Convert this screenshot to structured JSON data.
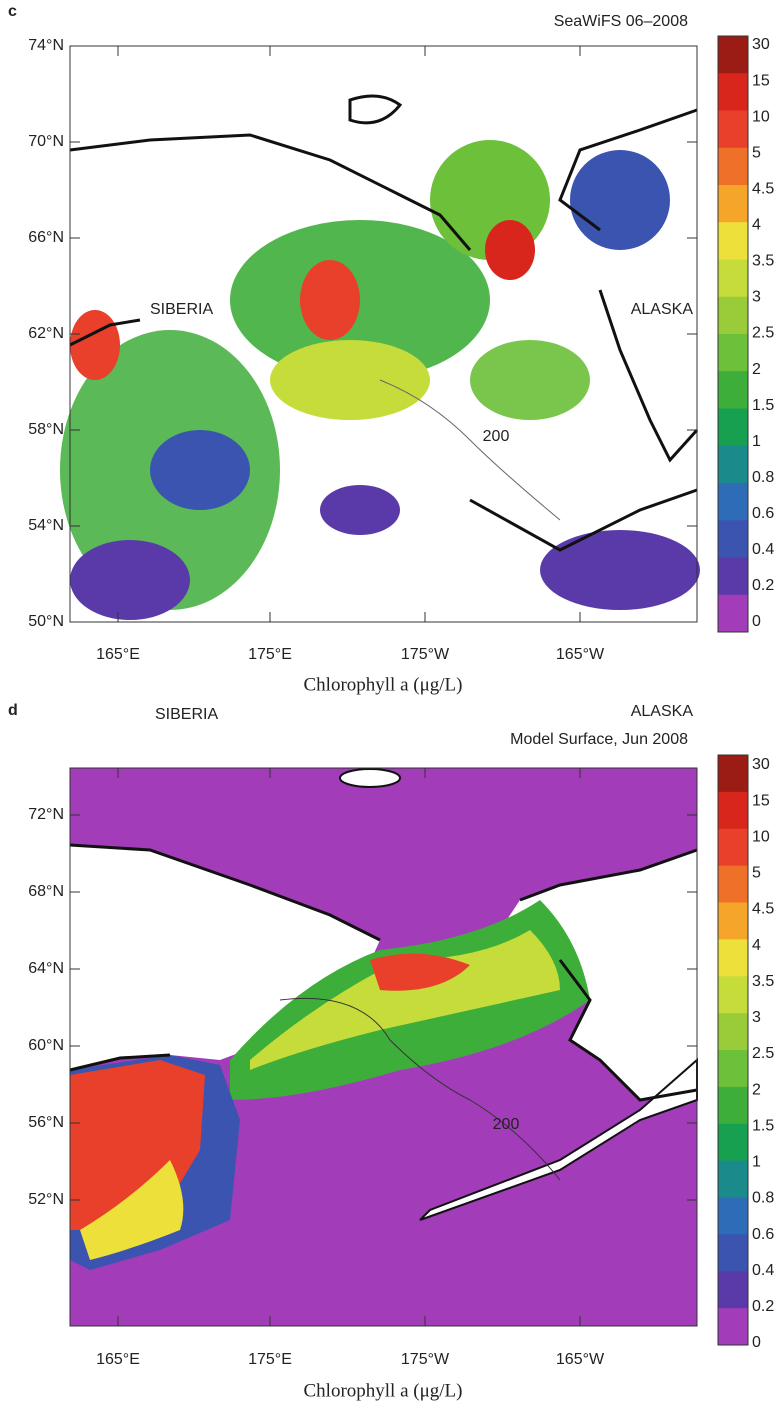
{
  "panels": [
    {
      "label": "c",
      "title": "SeaWiFS 06–2008",
      "lat_labels": [
        "74°N",
        "70°N",
        "66°N",
        "62°N",
        "58°N",
        "54°N",
        "50°N"
      ],
      "lon_labels": [
        "165°E",
        "175°E",
        "175°W",
        "165°W"
      ],
      "regions": [
        "SIBERIA",
        "ALASKA"
      ],
      "contour_label": "200",
      "x_label": "Chlorophyll a (μg/L)",
      "colorbar": {
        "labels": [
          "30",
          "15",
          "10",
          "5",
          "4.5",
          "4",
          "3.5",
          "3",
          "2.5",
          "2",
          "1.5",
          "1",
          "0.8",
          "0.6",
          "0.4",
          "0.2",
          "0"
        ],
        "colors": [
          "#9b1c14",
          "#d8261c",
          "#e8402a",
          "#ef7028",
          "#f4a52a",
          "#eee03a",
          "#c6dc3a",
          "#9acc3a",
          "#6cc03a",
          "#3eae3a",
          "#16a050",
          "#1a8a8a",
          "#2e6cb8",
          "#3a54b0",
          "#5a3aa8",
          "#a23cb8"
        ]
      }
    },
    {
      "label": "d",
      "title": "Model Surface, Jun 2008",
      "lat_labels": [
        "72°N",
        "68°N",
        "64°N",
        "60°N",
        "56°N",
        "52°N"
      ],
      "lon_labels": [
        "165°E",
        "175°E",
        "175°W",
        "165°W"
      ],
      "regions": [
        "SIBERIA",
        "ALASKA"
      ],
      "contour_label": "200",
      "x_label": "Chlorophyll a (μg/L)",
      "colorbar": {
        "labels": [
          "30",
          "15",
          "10",
          "5",
          "4.5",
          "4",
          "3.5",
          "3",
          "2.5",
          "2",
          "1.5",
          "1",
          "0.8",
          "0.6",
          "0.4",
          "0.2",
          "0"
        ],
        "colors": [
          "#9b1c14",
          "#d8261c",
          "#e8402a",
          "#ef7028",
          "#f4a52a",
          "#eee03a",
          "#c6dc3a",
          "#9acc3a",
          "#6cc03a",
          "#3eae3a",
          "#16a050",
          "#1a8a8a",
          "#2e6cb8",
          "#3a54b0",
          "#5a3aa8",
          "#a23cb8"
        ]
      }
    }
  ]
}
